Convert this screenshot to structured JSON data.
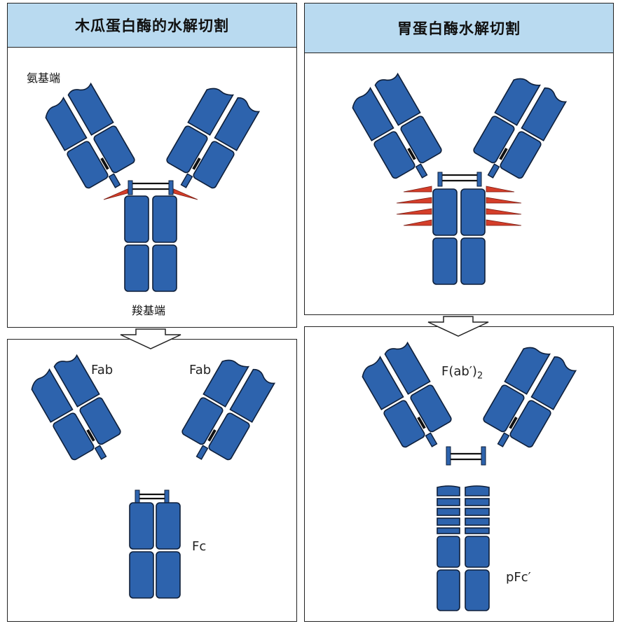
{
  "panels": {
    "papain": {
      "header": "木瓜蛋白酶的水解切割",
      "amino_label": "氨基端",
      "carboxyl_label": "羧基端",
      "fab_left": "Fab",
      "fab_right": "Fab",
      "fc": "Fc"
    },
    "pepsin": {
      "header": "胃蛋白酶水解切割",
      "fab2": "F(ab′)",
      "fab2_sub": "2",
      "pfc": "pFc′"
    }
  },
  "colors": {
    "domain": "#2d63ad",
    "header": "#b9daf0",
    "cleavage": "#d43e2a"
  }
}
